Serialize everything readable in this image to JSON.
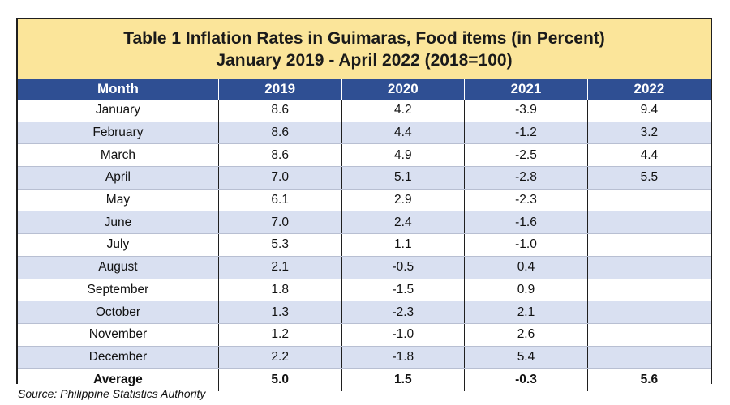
{
  "title": {
    "line1": "Table 1 Inflation Rates in Guimaras, Food items (in Percent)",
    "line2": "January 2019 - April 2022 (2018=100)"
  },
  "colors": {
    "header_bg": "#2f4f93",
    "title_bg": "#fbe59a",
    "stripe": "#d9e0f1"
  },
  "chart_data": {
    "type": "table",
    "columns": [
      "Month",
      "2019",
      "2020",
      "2021",
      "2022"
    ],
    "rows": [
      [
        "January",
        "8.6",
        "4.2",
        "-3.9",
        "9.4"
      ],
      [
        "February",
        "8.6",
        "4.4",
        "-1.2",
        "3.2"
      ],
      [
        "March",
        "8.6",
        "4.9",
        "-2.5",
        "4.4"
      ],
      [
        "April",
        "7.0",
        "5.1",
        "-2.8",
        "5.5"
      ],
      [
        "May",
        "6.1",
        "2.9",
        "-2.3",
        ""
      ],
      [
        "June",
        "7.0",
        "2.4",
        "-1.6",
        ""
      ],
      [
        "July",
        "5.3",
        "1.1",
        "-1.0",
        ""
      ],
      [
        "August",
        "2.1",
        "-0.5",
        "0.4",
        ""
      ],
      [
        "September",
        "1.8",
        "-1.5",
        "0.9",
        ""
      ],
      [
        "October",
        "1.3",
        "-2.3",
        "2.1",
        ""
      ],
      [
        "November",
        "1.2",
        "-1.0",
        "2.6",
        ""
      ],
      [
        "December",
        "2.2",
        "-1.8",
        "5.4",
        ""
      ]
    ],
    "average": [
      "Average",
      "5.0",
      "1.5",
      "-0.3",
      "5.6"
    ]
  },
  "source": "Source: Philippine Statistics Authority"
}
